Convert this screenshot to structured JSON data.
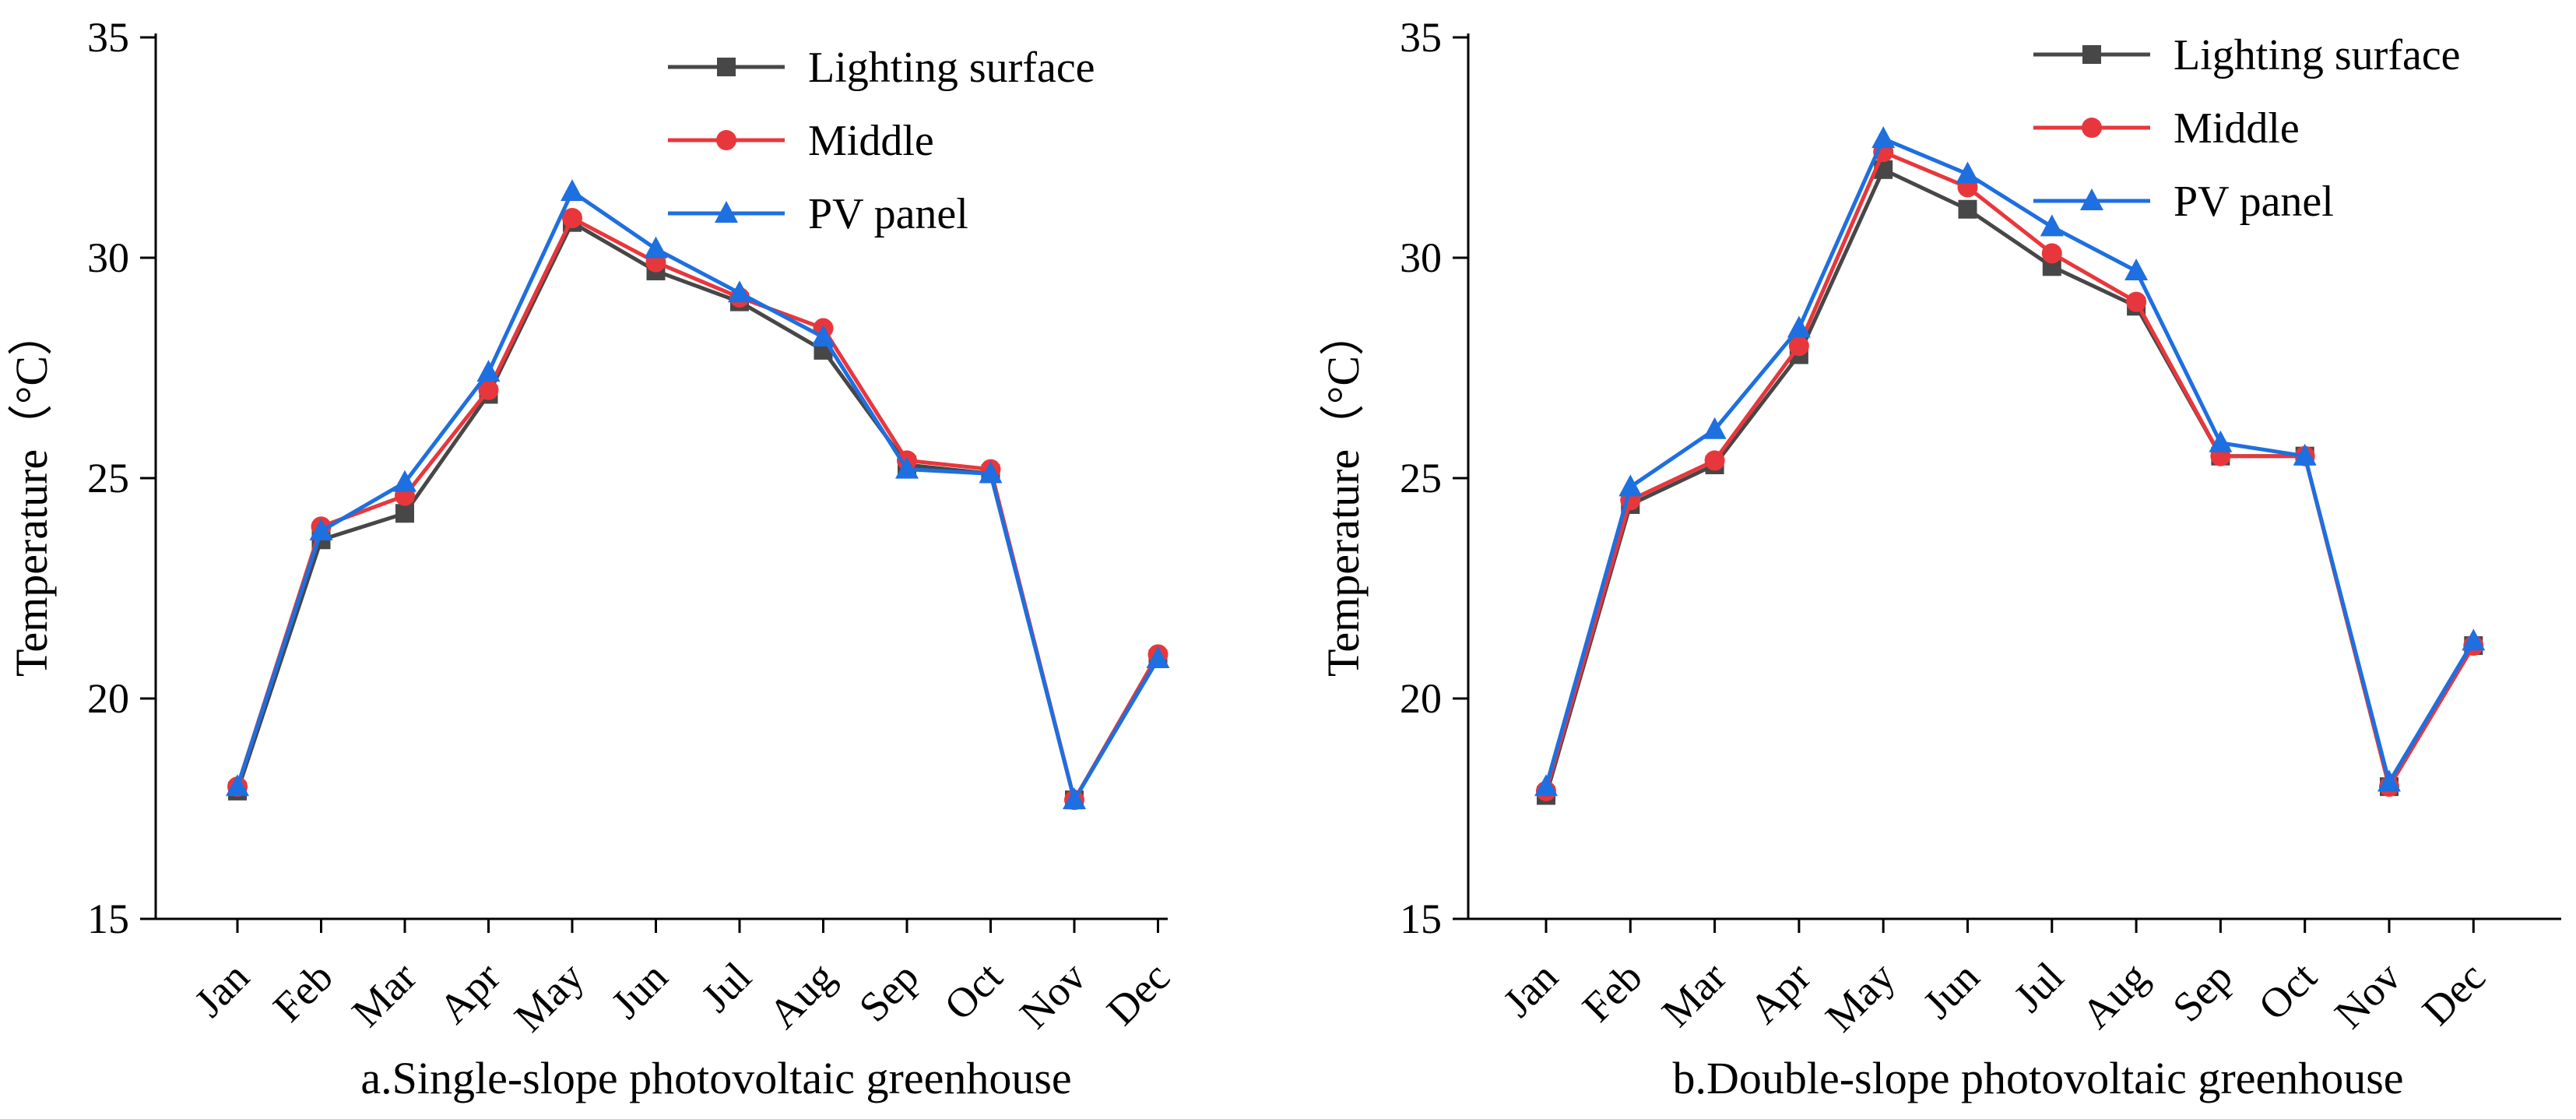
{
  "chart_data": [
    {
      "type": "line",
      "title": "a.Single-slope photovoltaic greenhouse",
      "xlabel": "",
      "ylabel": "Temperature（°C）",
      "ylim": [
        15,
        35
      ],
      "yticks": [
        15,
        20,
        25,
        30,
        35
      ],
      "categories": [
        "Jan",
        "Feb",
        "Mar",
        "Apr",
        "May",
        "Jun",
        "Jul",
        "Aug",
        "Sep",
        "Oct",
        "Nov",
        "Dec"
      ],
      "legend_position": "top-right",
      "series": [
        {
          "name": "Lighting surface",
          "marker": "square",
          "color": "#474747",
          "values": [
            17.9,
            23.6,
            24.2,
            26.9,
            30.8,
            29.7,
            29.0,
            27.9,
            25.3,
            25.1,
            17.7,
            20.9
          ]
        },
        {
          "name": "Middle",
          "marker": "circle",
          "color": "#e8373c",
          "values": [
            18.0,
            23.9,
            24.6,
            27.0,
            30.9,
            29.9,
            29.1,
            28.4,
            25.4,
            25.2,
            17.7,
            21.0
          ]
        },
        {
          "name": "PV panel",
          "marker": "triangle",
          "color": "#1e6fe0",
          "values": [
            18.0,
            23.8,
            24.9,
            27.4,
            31.5,
            30.2,
            29.2,
            28.2,
            25.2,
            25.1,
            17.7,
            20.9
          ]
        }
      ]
    },
    {
      "type": "line",
      "title": "b.Double-slope photovoltaic greenhouse",
      "xlabel": "",
      "ylabel": "Temperature（°C）",
      "ylim": [
        15,
        35
      ],
      "yticks": [
        15,
        20,
        25,
        30,
        35
      ],
      "categories": [
        "Jan",
        "Feb",
        "Mar",
        "Apr",
        "May",
        "Jun",
        "Jul",
        "Aug",
        "Sep",
        "Oct",
        "Nov",
        "Dec"
      ],
      "legend_position": "top-right",
      "series": [
        {
          "name": "Lighting surface",
          "marker": "square",
          "color": "#474747",
          "values": [
            17.8,
            24.4,
            25.3,
            27.8,
            32.0,
            31.1,
            29.8,
            28.9,
            25.5,
            25.5,
            18.0,
            21.2
          ]
        },
        {
          "name": "Middle",
          "marker": "circle",
          "color": "#e8373c",
          "values": [
            17.9,
            24.5,
            25.4,
            28.0,
            32.4,
            31.6,
            30.1,
            29.0,
            25.5,
            25.5,
            18.0,
            21.2
          ]
        },
        {
          "name": "PV panel",
          "marker": "triangle",
          "color": "#1e6fe0",
          "values": [
            18.0,
            24.8,
            26.1,
            28.4,
            32.7,
            31.9,
            30.7,
            29.7,
            25.8,
            25.5,
            18.1,
            21.3
          ]
        }
      ]
    }
  ]
}
